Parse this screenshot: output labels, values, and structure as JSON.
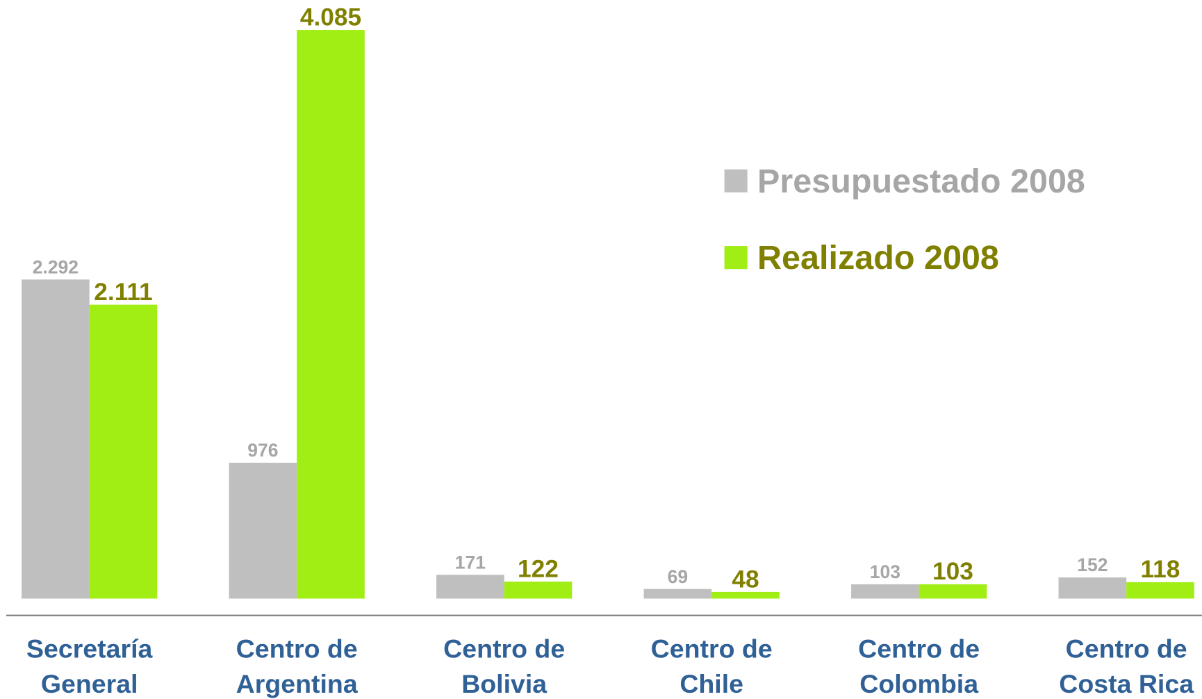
{
  "chart_data": {
    "type": "bar",
    "categories": [
      [
        "Secretaría",
        "General"
      ],
      [
        "Centro de",
        "Argentina"
      ],
      [
        "Centro de",
        "Bolivia"
      ],
      [
        "Centro de",
        "Chile"
      ],
      [
        "Centro de",
        "Colombia"
      ],
      [
        "Centro de",
        "Costa Rica"
      ]
    ],
    "series": [
      {
        "name": "Presupuestado 2008",
        "color": "#bfbfbf",
        "label_color": "#a6a6a6",
        "values": [
          2292,
          976,
          171,
          69,
          103,
          152
        ],
        "value_labels": [
          "2.292",
          "976",
          "171",
          "69",
          "103",
          "152"
        ]
      },
      {
        "name": "Realizado 2008",
        "color": "#a0ee14",
        "label_color": "#808000",
        "values": [
          2111,
          4085,
          122,
          48,
          103,
          118
        ],
        "value_labels": [
          "2.111",
          "4.085",
          "122",
          "48",
          "103",
          "118"
        ]
      }
    ],
    "ylim": [
      0,
      4300
    ]
  }
}
